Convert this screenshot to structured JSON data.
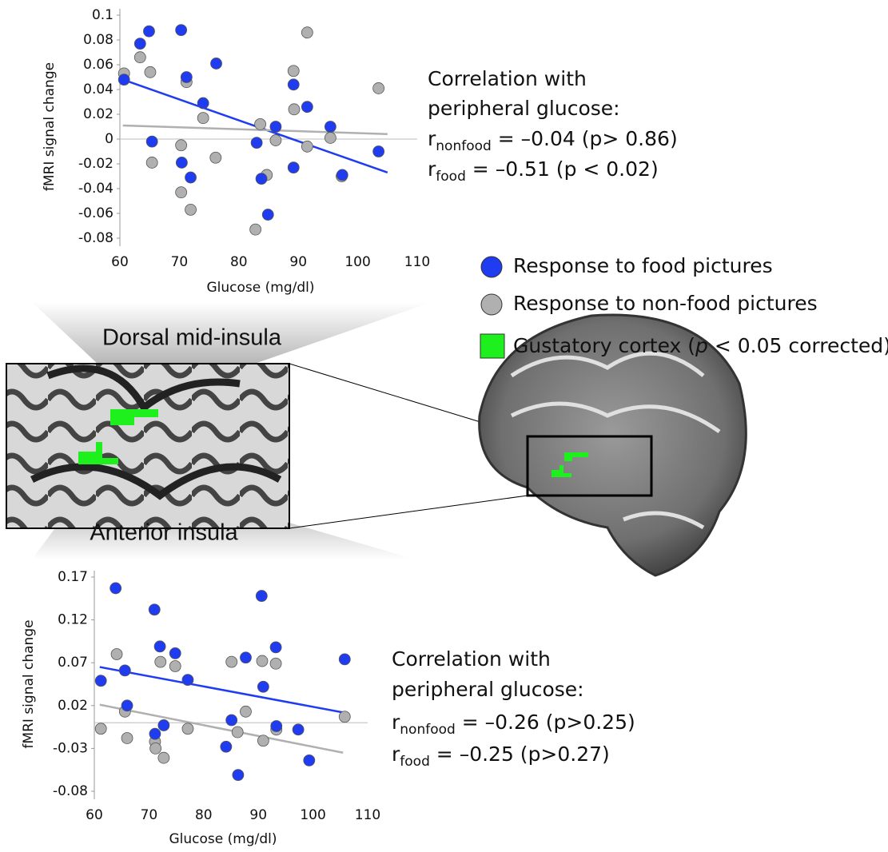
{
  "chart_data": [
    {
      "type": "scatter",
      "xlabel": "Glucose (mg/dl)",
      "ylabel": "fMRI signal change",
      "xlim": [
        60,
        110
      ],
      "xticks": [
        60,
        70,
        80,
        90,
        100,
        110
      ],
      "ylim": [
        -0.09,
        0.1
      ],
      "yticks": [
        0.1,
        0.08,
        0.06,
        0.04,
        0.02,
        0,
        -0.02,
        -0.04,
        -0.06,
        -0.08
      ],
      "series": [
        {
          "name": "Response to food pictures",
          "color": "#1f3cf0",
          "x": [
            60.7,
            63.4,
            64.9,
            70.3,
            71.2,
            76.2,
            74,
            65.4,
            70.4,
            71.9,
            83,
            83.8,
            84.9,
            86.2,
            89.2,
            89.2,
            91.5,
            95.4,
            97.4,
            103.5
          ],
          "values": [
            0.048,
            0.077,
            0.087,
            0.088,
            0.05,
            0.061,
            0.029,
            -0.002,
            -0.019,
            -0.031,
            -0.003,
            -0.032,
            -0.061,
            0.01,
            -0.023,
            0.044,
            0.026,
            0.01,
            -0.029,
            -0.01
          ],
          "trend": {
            "x": [
              60.5,
              105
            ],
            "values": [
              0.048,
              -0.027
            ]
          }
        },
        {
          "name": "Response to non-food pictures",
          "color": "#b0b0b0",
          "x": [
            60.7,
            63.4,
            65.1,
            65.4,
            70.3,
            70.3,
            71.2,
            71.9,
            74,
            76.1,
            83.6,
            82.8,
            84.7,
            86.2,
            89.2,
            89.3,
            91.5,
            91.5,
            95.4,
            97.3,
            103.5
          ],
          "values": [
            0.053,
            0.066,
            0.054,
            -0.019,
            -0.005,
            -0.043,
            0.046,
            -0.057,
            0.017,
            -0.015,
            0.012,
            -0.073,
            -0.029,
            -0.001,
            0.055,
            0.024,
            0.086,
            -0.006,
            0.001,
            -0.03,
            0.041
          ],
          "trend": {
            "x": [
              60.5,
              105
            ],
            "values": [
              0.011,
              0.004
            ]
          }
        }
      ]
    },
    {
      "type": "scatter",
      "xlabel": "Glucose (mg/dl)",
      "ylabel": "fMRI signal change",
      "xlim": [
        60,
        110
      ],
      "xticks": [
        60,
        70,
        80,
        90,
        100,
        110
      ],
      "ylim": [
        -0.08,
        0.18
      ],
      "yticks": [
        0.17,
        0.12,
        0.07,
        0.02,
        -0.03,
        -0.08
      ],
      "series": [
        {
          "color": "#1f3cf0",
          "x": [
            61.2,
            63.9,
            65.6,
            66,
            71,
            71.1,
            72,
            72.7,
            74.8,
            77.1,
            84.1,
            85.1,
            86.3,
            87.7,
            90.6,
            90.9,
            93.2,
            93.3,
            97.3,
            99.3,
            105.8
          ],
          "values": [
            0.049,
            0.157,
            0.061,
            0.02,
            0.132,
            -0.013,
            0.089,
            -0.003,
            0.081,
            0.05,
            -0.028,
            0.003,
            -0.061,
            0.076,
            0.148,
            0.042,
            0.088,
            -0.004,
            -0.008,
            -0.044,
            0.074
          ],
          "trend": {
            "x": [
              61,
              105.5
            ],
            "values": [
              0.065,
              0.012
            ]
          }
        },
        {
          "color": "#b0b0b0",
          "x": [
            61.2,
            64.1,
            65.6,
            66,
            71.1,
            71.2,
            72.1,
            72.7,
            74.8,
            77.1,
            85.1,
            86.2,
            87.7,
            90.7,
            90.9,
            93.2,
            93.3,
            105.8
          ],
          "values": [
            -0.007,
            0.08,
            0.013,
            -0.018,
            -0.022,
            -0.03,
            0.071,
            -0.041,
            0.066,
            -0.007,
            0.071,
            -0.011,
            0.013,
            0.072,
            -0.021,
            0.069,
            -0.008,
            0.007
          ],
          "trend": {
            "x": [
              61,
              105.5
            ],
            "values": [
              0.021,
              -0.035
            ]
          }
        }
      ]
    }
  ],
  "legend_extra": {
    "before": "Gustatory cortex (",
    "italic": "p",
    "after": " < 0.05 corrected)"
  },
  "regions": [
    "Dorsal mid-insula",
    "Anterior insula"
  ],
  "correlations": [
    {
      "heading": [
        "Correlation with",
        "peripheral glucose:"
      ],
      "rows": [
        {
          "r": "r",
          "sub": "nonfood",
          "text": " = –0.04 (p> 0.86)"
        },
        {
          "r": "r",
          "sub": "food",
          "text": " = –0.51 (p < 0.02)"
        }
      ]
    },
    {
      "heading": [
        "Correlation with",
        "peripheral glucose:"
      ],
      "rows": [
        {
          "r": "r",
          "sub": "nonfood",
          "text": " = –0.26 (p>0.25)"
        },
        {
          "r": "r",
          "sub": "food",
          "text": " = –0.25 (p>0.27)"
        }
      ]
    }
  ]
}
